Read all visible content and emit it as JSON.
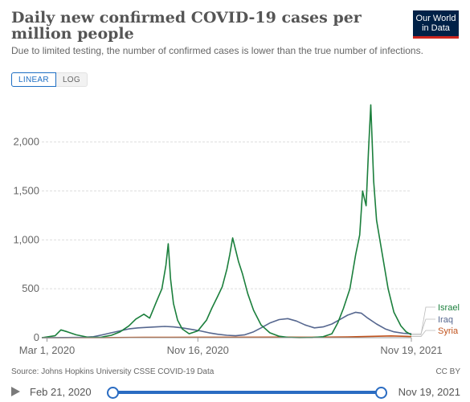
{
  "header": {
    "title": "Daily new confirmed COVID-19 cases per million people",
    "subtitle": "Due to limited testing, the number of confirmed cases is lower than the true number of infections.",
    "logo_line1": "Our World",
    "logo_line2": "in Data"
  },
  "scale_toggle": {
    "linear_label": "LINEAR",
    "log_label": "LOG",
    "selected": "LINEAR"
  },
  "footer": {
    "source": "Source: Johns Hopkins University CSSE COVID-19 Data",
    "license": "CC BY"
  },
  "timeline": {
    "start_label": "Feb 21, 2020",
    "end_label": "Nov 19, 2021",
    "play_icon": "play-icon"
  },
  "colors": {
    "Israel": "#1b7f3c",
    "Iraq": "#56678f",
    "Syria": "#c0521c",
    "accent": "#2a6cc2"
  },
  "chart_data": {
    "type": "line",
    "title": "Daily new confirmed COVID-19 cases per million people",
    "x_type": "date",
    "x_range": [
      "2020-02-21",
      "2021-11-19"
    ],
    "x_ticks": [
      "2020-03-01",
      "2020-11-16",
      "2021-11-19"
    ],
    "x_tick_labels": [
      "Mar 1, 2020",
      "Nov 16, 2020",
      "Nov 19, 2021"
    ],
    "ylim": [
      0,
      2400
    ],
    "y_ticks": [
      0,
      500,
      1000,
      1500,
      2000
    ],
    "y_tick_labels": [
      "0",
      "500",
      "1,000",
      "1,500",
      "2,000"
    ],
    "grid": "horizontal dashed",
    "legend": "right end labels",
    "series": [
      {
        "name": "Israel",
        "x": [
          "2020-02-21",
          "2020-03-15",
          "2020-03-25",
          "2020-04-05",
          "2020-04-20",
          "2020-05-10",
          "2020-06-01",
          "2020-06-20",
          "2020-07-05",
          "2020-07-20",
          "2020-08-01",
          "2020-08-15",
          "2020-08-25",
          "2020-09-05",
          "2020-09-15",
          "2020-09-22",
          "2020-09-26",
          "2020-09-30",
          "2020-10-05",
          "2020-10-12",
          "2020-10-20",
          "2020-11-01",
          "2020-11-16",
          "2020-12-01",
          "2020-12-10",
          "2020-12-20",
          "2020-12-28",
          "2021-01-05",
          "2021-01-10",
          "2021-01-15",
          "2021-01-20",
          "2021-01-25",
          "2021-02-01",
          "2021-02-10",
          "2021-02-20",
          "2021-03-05",
          "2021-03-20",
          "2021-04-05",
          "2021-04-20",
          "2021-05-10",
          "2021-06-01",
          "2021-06-20",
          "2021-07-05",
          "2021-07-15",
          "2021-07-25",
          "2021-08-05",
          "2021-08-15",
          "2021-08-22",
          "2021-08-27",
          "2021-09-02",
          "2021-09-06",
          "2021-09-10",
          "2021-09-15",
          "2021-09-20",
          "2021-09-30",
          "2021-10-10",
          "2021-10-20",
          "2021-11-01",
          "2021-11-10",
          "2021-11-19"
        ],
        "values": [
          0,
          20,
          80,
          60,
          30,
          5,
          3,
          25,
          60,
          120,
          190,
          240,
          200,
          360,
          500,
          740,
          960,
          600,
          350,
          180,
          90,
          40,
          70,
          180,
          300,
          420,
          520,
          700,
          850,
          1020,
          900,
          780,
          650,
          450,
          280,
          130,
          50,
          15,
          3,
          1,
          2,
          10,
          40,
          150,
          300,
          500,
          850,
          1050,
          1500,
          1350,
          1900,
          2380,
          1600,
          1200,
          850,
          500,
          260,
          120,
          60,
          30
        ]
      },
      {
        "name": "Iraq",
        "x": [
          "2020-02-21",
          "2020-03-15",
          "2020-04-05",
          "2020-05-01",
          "2020-05-20",
          "2020-06-05",
          "2020-06-20",
          "2020-07-05",
          "2020-07-20",
          "2020-08-05",
          "2020-08-20",
          "2020-09-05",
          "2020-09-20",
          "2020-10-05",
          "2020-10-20",
          "2020-11-05",
          "2020-11-20",
          "2020-12-05",
          "2020-12-20",
          "2021-01-05",
          "2021-01-20",
          "2021-02-05",
          "2021-02-20",
          "2021-03-05",
          "2021-03-20",
          "2021-04-05",
          "2021-04-20",
          "2021-05-05",
          "2021-05-20",
          "2021-06-05",
          "2021-06-20",
          "2021-07-05",
          "2021-07-20",
          "2021-08-01",
          "2021-08-15",
          "2021-08-25",
          "2021-09-05",
          "2021-09-20",
          "2021-10-05",
          "2021-10-20",
          "2021-11-05",
          "2021-11-19"
        ],
        "values": [
          0,
          1,
          2,
          4,
          10,
          30,
          50,
          70,
          90,
          100,
          105,
          110,
          115,
          110,
          100,
          85,
          70,
          50,
          35,
          25,
          20,
          30,
          60,
          100,
          150,
          185,
          195,
          170,
          130,
          100,
          110,
          140,
          190,
          230,
          260,
          250,
          200,
          140,
          90,
          60,
          45,
          40
        ]
      },
      {
        "name": "Syria",
        "x": [
          "2020-02-21",
          "2020-06-01",
          "2020-08-15",
          "2020-10-01",
          "2020-12-01",
          "2021-02-01",
          "2021-04-01",
          "2021-06-01",
          "2021-08-01",
          "2021-09-15",
          "2021-10-15",
          "2021-11-19"
        ],
        "values": [
          0,
          0,
          3,
          4,
          5,
          5,
          6,
          5,
          8,
          14,
          18,
          12
        ]
      }
    ]
  }
}
